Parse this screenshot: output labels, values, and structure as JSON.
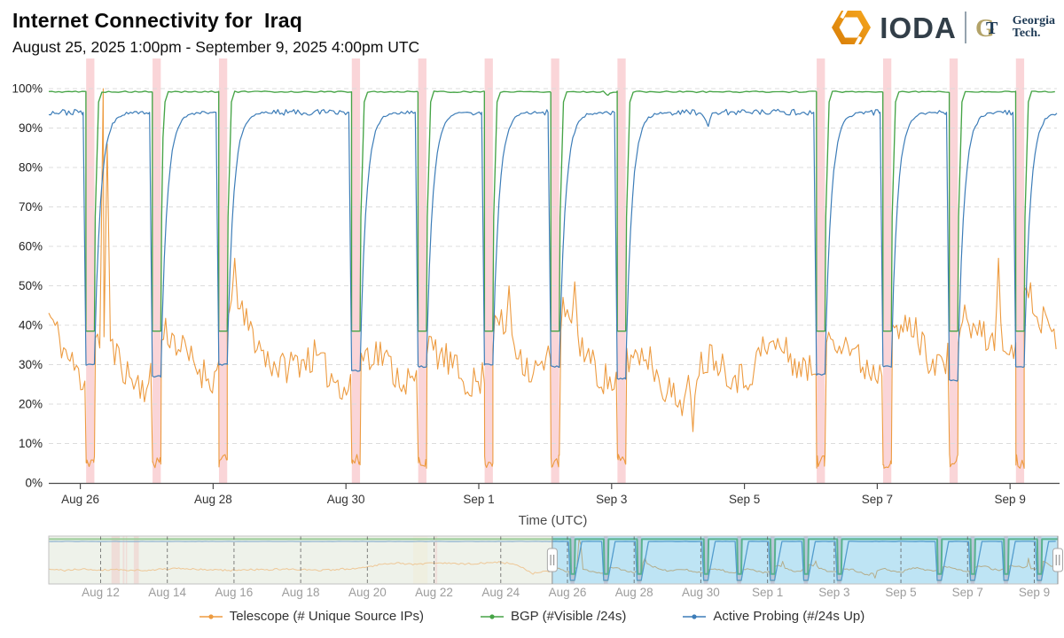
{
  "header": {
    "title": "Internet Connectivity for  Iraq",
    "subtitle": "August 25, 2025 1:00pm - September 9, 2025 4:00pm UTC",
    "logo": {
      "ioda_text": "IODA",
      "gt_mark_g": "G",
      "gt_mark_t": "T",
      "gt_line1": "Georgia",
      "gt_line2": "Tech."
    }
  },
  "chart_data": {
    "type": "line",
    "title": "Internet Connectivity for Iraq",
    "time_range": "August 25, 2025 1:00pm - September 9, 2025 4:00pm UTC",
    "xlabel": "Time (UTC)",
    "ylabel": "",
    "ylim": [
      0,
      100
    ],
    "grid": "dashed-horizontal",
    "legend_position": "bottom",
    "y_ticks": [
      "0%",
      "10%",
      "20%",
      "30%",
      "40%",
      "50%",
      "60%",
      "70%",
      "80%",
      "90%",
      "100%"
    ],
    "x_ticks": [
      {
        "label": "Aug 26",
        "day": 0.475
      },
      {
        "label": "Aug 28",
        "day": 2.475
      },
      {
        "label": "Aug 30",
        "day": 4.475
      },
      {
        "label": "Sep 1",
        "day": 6.475
      },
      {
        "label": "Sep 3",
        "day": 8.475
      },
      {
        "label": "Sep 5",
        "day": 10.475
      },
      {
        "label": "Sep 7",
        "day": 12.475
      },
      {
        "label": "Sep 9",
        "day": 14.475
      }
    ],
    "domain_days": [
      0,
      15.18
    ],
    "outage_bands": {
      "color": "#F08790",
      "opacity": 0.35,
      "dates": [
        "Aug 26",
        "Aug 27",
        "Aug 28",
        "Aug 30",
        "Aug 31",
        "Sep 1",
        "Sep 2",
        "Sep 3",
        "Sep 6",
        "Sep 7",
        "Sep 8",
        "Sep 9"
      ],
      "windows": [
        {
          "start": 0.563,
          "end": 0.687
        },
        {
          "start": 1.563,
          "end": 1.687
        },
        {
          "start": 2.563,
          "end": 2.687
        },
        {
          "start": 4.563,
          "end": 4.687
        },
        {
          "start": 5.563,
          "end": 5.687
        },
        {
          "start": 6.563,
          "end": 6.687
        },
        {
          "start": 7.563,
          "end": 7.687
        },
        {
          "start": 8.563,
          "end": 8.687
        },
        {
          "start": 11.563,
          "end": 11.687
        },
        {
          "start": 12.563,
          "end": 12.687
        },
        {
          "start": 13.563,
          "end": 13.687
        },
        {
          "start": 14.563,
          "end": 14.687
        }
      ]
    },
    "series": [
      {
        "name": "Telescope (# Unique Source IPs)",
        "color": "#ED9B40",
        "baseline_step_days": 0.25,
        "baseline": [
          43,
          33,
          26,
          36,
          33,
          26,
          24,
          39,
          34,
          29,
          26,
          46,
          40,
          32,
          29,
          31,
          32,
          27,
          24,
          33,
          33,
          27,
          25,
          34,
          31,
          26,
          25,
          41,
          36,
          28,
          30,
          44,
          36,
          28,
          25,
          32,
          33,
          25,
          20,
          29,
          33,
          28,
          26,
          34,
          35,
          30,
          28,
          38,
          36,
          30,
          28,
          38,
          40,
          32,
          30,
          42,
          38,
          35,
          33,
          50,
          40,
          34
        ],
        "noise_amp": 4.3,
        "outage_value": 5.5,
        "anomalies": [
          {
            "day": 0.82,
            "value": 100
          },
          {
            "day": 0.88,
            "value": 86
          },
          {
            "day": 2.8,
            "value": 57
          },
          {
            "day": 6.93,
            "value": 50
          },
          {
            "day": 7.92,
            "value": 51
          },
          {
            "day": 9.7,
            "value": 13
          },
          {
            "day": 14.3,
            "value": 57
          }
        ]
      },
      {
        "name": "BGP (#Visible /24s)",
        "color": "#46A446",
        "baseline_value": 99.2,
        "noise_amp": 0.18,
        "outage_value": 38.5,
        "notches": [
          {
            "day": 1.72,
            "value": 98.2
          },
          {
            "day": 8.42,
            "value": 98.3
          }
        ]
      },
      {
        "name": "Active Probing (#/24s Up)",
        "color": "#3D7DB8",
        "baseline_value": 94,
        "noise_amp": 0.75,
        "outage_dip_values": [
          30,
          27,
          30,
          28.5,
          29.5,
          30,
          29.5,
          26.5,
          27.5,
          29.5,
          26,
          29.5
        ],
        "recovery_days": 0.09,
        "anomalies": [
          {
            "day": 9.92,
            "value": 91
          }
        ]
      }
    ]
  },
  "navigator": {
    "domain_days": [
      -15.08,
      15.18
    ],
    "selection": [
      0.02,
      15.18
    ],
    "selection_fill": "#6FC3E7",
    "unselected_fill": "#EDF0E8",
    "x_ticks": [
      {
        "label": "Aug 12",
        "day": -13.525
      },
      {
        "label": "Aug 14",
        "day": -11.525
      },
      {
        "label": "Aug 16",
        "day": -9.525
      },
      {
        "label": "Aug 18",
        "day": -7.525
      },
      {
        "label": "Aug 20",
        "day": -5.525
      },
      {
        "label": "Aug 22",
        "day": -3.525
      },
      {
        "label": "Aug 24",
        "day": -1.525
      },
      {
        "label": "Aug 26",
        "day": 0.475
      },
      {
        "label": "Aug 28",
        "day": 2.475
      },
      {
        "label": "Aug 30",
        "day": 4.475
      },
      {
        "label": "Sep 1",
        "day": 6.475
      },
      {
        "label": "Sep 3",
        "day": 8.475
      },
      {
        "label": "Sep 5",
        "day": 10.475
      },
      {
        "label": "Sep 7",
        "day": 12.475
      },
      {
        "label": "Sep 9",
        "day": 14.475
      }
    ],
    "pre_orange_step_days": 0.5,
    "pre_orange": [
      32,
      30,
      33,
      31,
      32,
      30,
      31,
      33,
      34,
      32,
      31,
      30,
      32,
      31,
      33,
      32,
      30,
      31,
      34,
      36,
      45,
      46,
      43,
      47,
      45,
      44,
      46,
      48,
      44,
      23,
      28
    ],
    "pre_bands": [
      {
        "start": -13.2,
        "end": -12.95
      },
      {
        "start": -12.86,
        "end": -12.81
      },
      {
        "start": -12.77,
        "end": -12.73
      },
      {
        "start": -12.53,
        "end": -12.38
      }
    ],
    "faint_bands": [
      {
        "start": -4.15,
        "end": -3.72,
        "color": "#EFE8C8",
        "opacity": 0.6
      },
      {
        "start": -3.5,
        "end": -3.43,
        "color": "#F2A7AC",
        "opacity": 0.5
      }
    ]
  },
  "legend": {
    "items": [
      {
        "label": "Telescope (# Unique Source IPs)",
        "color": "#ED9B40"
      },
      {
        "label": "BGP (#Visible /24s)",
        "color": "#46A446"
      },
      {
        "label": "Active Probing (#/24s Up)",
        "color": "#3D7DB8"
      }
    ]
  }
}
